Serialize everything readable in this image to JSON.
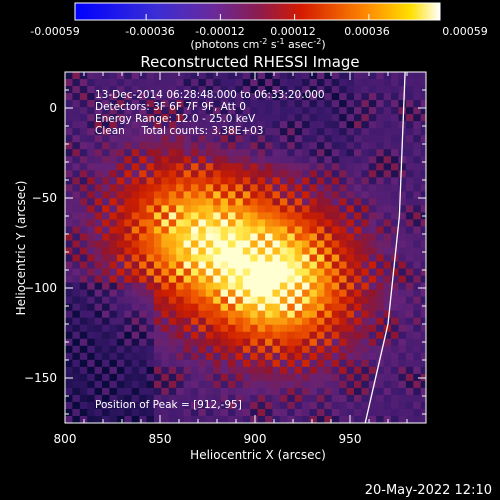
{
  "colorbar": {
    "ticks": [
      "-0.00059",
      "-0.00036",
      "-0.00012",
      "0.00012",
      "0.00036",
      "0.00059"
    ],
    "units_prefix": "(photons cm",
    "units_exp1": "-2",
    "units_mid": " s",
    "units_exp2": "-1",
    "units_mid2": " asec",
    "units_exp3": "-2",
    "units_suffix": ")",
    "range": [
      -0.00059,
      0.00059
    ]
  },
  "info": {
    "line1": "13-Dec-2014 06:28:48.000 to 06:33:20.000",
    "line2": "Detectors: 3F 6F 7F 9F, Att 0",
    "line3": "Energy Range: 12.0 - 25.0 keV",
    "line4": "Clean     Total counts: 3.38E+03",
    "peak": "Position of Peak = [912,-95]"
  },
  "footer": {
    "timestamp": "20-May-2022 12:10"
  },
  "colors": {
    "background": "#000000",
    "text": "#ffffff",
    "limb": "#ffffff"
  },
  "chart_data": {
    "type": "heatmap",
    "title": "Reconstructed RHESSI Image",
    "xlabel": "Heliocentric X (arcsec)",
    "ylabel": "Heliocentric Y (arcsec)",
    "xlim": [
      800,
      990
    ],
    "ylim": [
      -175,
      20
    ],
    "xticks": [
      800,
      850,
      900,
      950
    ],
    "yticks": [
      0,
      -50,
      -100,
      -150
    ],
    "peak_position": [
      912,
      -95
    ],
    "sources": [
      {
        "x": 912,
        "y": -95,
        "intensity": 0.00059
      },
      {
        "x": 862,
        "y": -65,
        "intensity": 0.00048
      }
    ],
    "colormap": "blue-purple-red-yellow-white"
  }
}
